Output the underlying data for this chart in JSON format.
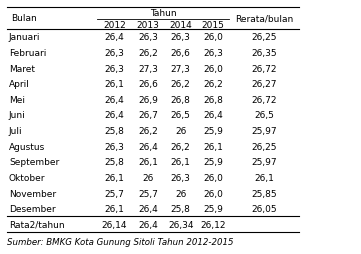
{
  "title_top": "Tahun",
  "col_headers": [
    "Bulan",
    "2012",
    "2013",
    "2014",
    "2015",
    "Rerata/bulan"
  ],
  "rows": [
    [
      "Januari",
      "26,4",
      "26,3",
      "26,3",
      "26,0",
      "26,25"
    ],
    [
      "Februari",
      "26,3",
      "26,2",
      "26,6",
      "26,3",
      "26,35"
    ],
    [
      "Maret",
      "26,3",
      "27,3",
      "27,3",
      "26,0",
      "26,72"
    ],
    [
      "April",
      "26,1",
      "26,6",
      "26,2",
      "26,2",
      "26,27"
    ],
    [
      "Mei",
      "26,4",
      "26,9",
      "26,8",
      "26,8",
      "26,72"
    ],
    [
      "Juni",
      "26,4",
      "26,7",
      "26,5",
      "26,4",
      "26,5"
    ],
    [
      "Juli",
      "25,8",
      "26,2",
      "26",
      "25,9",
      "25,97"
    ],
    [
      "Agustus",
      "26,3",
      "26,4",
      "26,2",
      "26,1",
      "26,25"
    ],
    [
      "September",
      "25,8",
      "26,1",
      "26,1",
      "25,9",
      "25,97"
    ],
    [
      "Oktober",
      "26,1",
      "26",
      "26,3",
      "26,0",
      "26,1"
    ],
    [
      "November",
      "25,7",
      "25,7",
      "26",
      "26,0",
      "25,85"
    ],
    [
      "Desember",
      "26,1",
      "26,4",
      "25,8",
      "25,9",
      "26,05"
    ],
    [
      "Rata2/tahun",
      "26,14",
      "26,4",
      "26,34",
      "26,12",
      ""
    ]
  ],
  "source": "Sumber: BMKG Kota Gunung Sitoli Tahun 2012-2015",
  "bg_color": "#ffffff",
  "text_color": "#000000",
  "font_size": 6.5
}
